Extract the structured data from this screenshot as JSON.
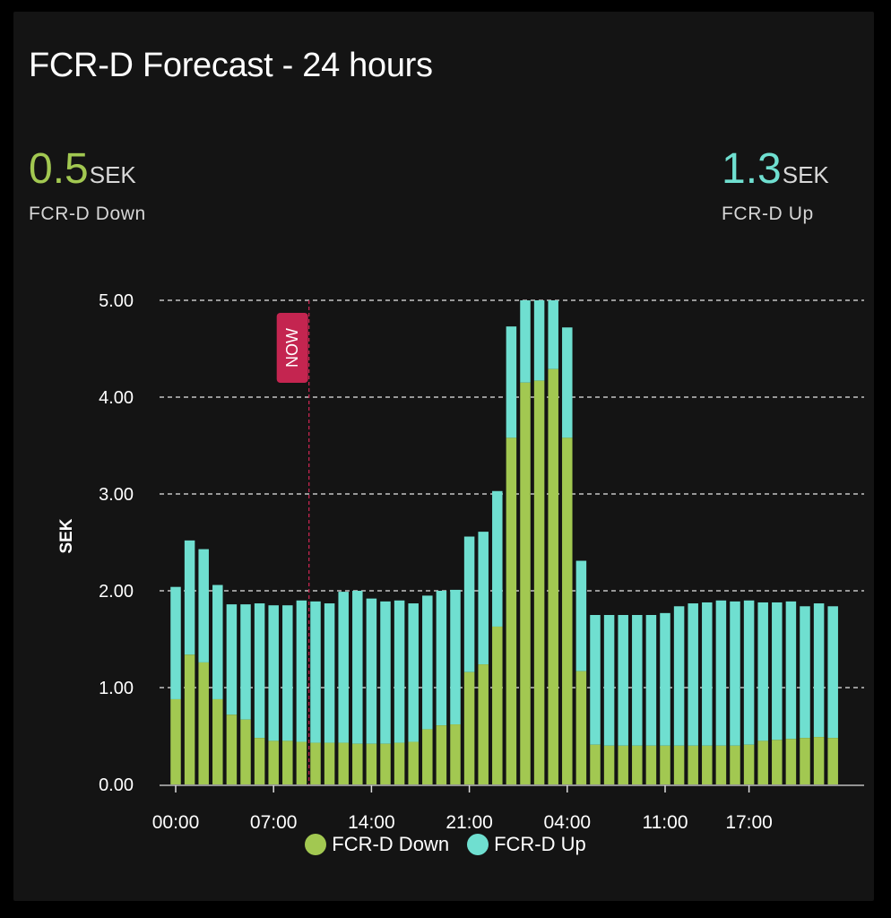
{
  "card": {
    "title": "FCR-D Forecast - 24 hours"
  },
  "stats": {
    "down": {
      "value": "0.5",
      "unit": "SEK",
      "label": "FCR-D Down"
    },
    "up": {
      "value": "1.3",
      "unit": "SEK",
      "label": "FCR-D Up"
    }
  },
  "colors": {
    "down": "#a2c851",
    "up": "#6fdfd0",
    "now": "#c42550",
    "grid": "#e6e6e6",
    "bg": "#141414"
  },
  "now_marker": {
    "label": "NOW",
    "x_index": 9.5
  },
  "chart_data": {
    "type": "bar",
    "stacked": true,
    "ylabel": "SEK",
    "ylim": [
      0,
      5
    ],
    "yticks": [
      0,
      1,
      2,
      3,
      4,
      5
    ],
    "ytick_labels": [
      "0.00",
      "1.00",
      "2.00",
      "3.00",
      "4.00",
      "5.00"
    ],
    "xtick_labels": [
      {
        "index": 0,
        "label": "00:00"
      },
      {
        "index": 7,
        "label": "07:00"
      },
      {
        "index": 14,
        "label": "14:00"
      },
      {
        "index": 21,
        "label": "21:00"
      },
      {
        "index": 28,
        "label": "04:00"
      },
      {
        "index": 35,
        "label": "11:00"
      },
      {
        "index": 41,
        "label": "17:00"
      }
    ],
    "grid": true,
    "legend_position": "bottom",
    "series": [
      {
        "name": "FCR-D Down",
        "values": [
          0.88,
          1.34,
          1.26,
          0.88,
          0.72,
          0.67,
          0.48,
          0.45,
          0.45,
          0.44,
          0.43,
          0.43,
          0.43,
          0.42,
          0.42,
          0.42,
          0.43,
          0.44,
          0.57,
          0.61,
          0.62,
          1.16,
          1.24,
          1.63,
          3.58,
          4.15,
          4.17,
          4.29,
          3.58,
          1.17,
          0.41,
          0.4,
          0.4,
          0.4,
          0.4,
          0.4,
          0.4,
          0.4,
          0.4,
          0.4,
          0.4,
          0.41,
          0.45,
          0.46,
          0.47,
          0.48,
          0.49,
          0.48
        ]
      },
      {
        "name": "FCR-D Up",
        "values": [
          1.16,
          1.18,
          1.17,
          1.18,
          1.14,
          1.19,
          1.39,
          1.4,
          1.4,
          1.46,
          1.46,
          1.44,
          1.56,
          1.58,
          1.5,
          1.47,
          1.47,
          1.43,
          1.38,
          1.39,
          1.39,
          1.4,
          1.37,
          1.4,
          1.15,
          0.85,
          0.83,
          0.71,
          1.14,
          1.14,
          1.34,
          1.35,
          1.35,
          1.35,
          1.35,
          1.37,
          1.44,
          1.47,
          1.48,
          1.5,
          1.49,
          1.49,
          1.43,
          1.42,
          1.42,
          1.36,
          1.38,
          1.36
        ]
      }
    ]
  }
}
